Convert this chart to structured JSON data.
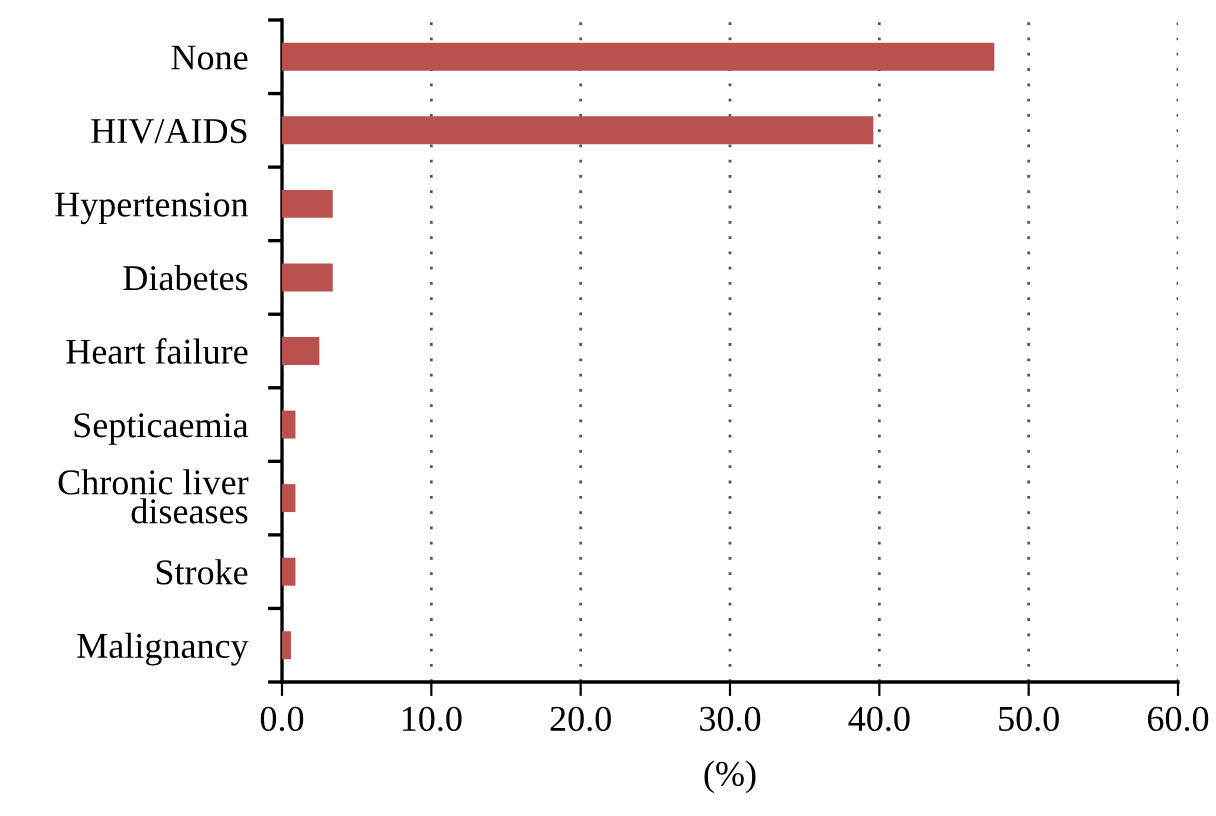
{
  "chart_data": {
    "type": "bar",
    "orientation": "horizontal",
    "xlabel": "(%)",
    "categories": [
      "None",
      "HIV/AIDS",
      "Hypertension",
      "Diabetes",
      "Heart failure",
      "Septicaemia",
      "Chronic liver\ndiseases",
      "Stroke",
      "Malignancy"
    ],
    "values": [
      47.7,
      39.6,
      3.4,
      3.4,
      2.5,
      0.9,
      0.9,
      0.9,
      0.6
    ],
    "color": "#b9514e",
    "xlim": [
      0,
      60
    ],
    "xticks": [
      {
        "value": 0,
        "label": "0.0"
      },
      {
        "value": 10,
        "label": "10.0"
      },
      {
        "value": 20,
        "label": "20.0"
      },
      {
        "value": 30,
        "label": "30.0"
      },
      {
        "value": 40,
        "label": "40.0"
      },
      {
        "value": 50,
        "label": "50.0"
      },
      {
        "value": 60,
        "label": "60.0"
      }
    ],
    "grid": "x",
    "legend": false
  }
}
